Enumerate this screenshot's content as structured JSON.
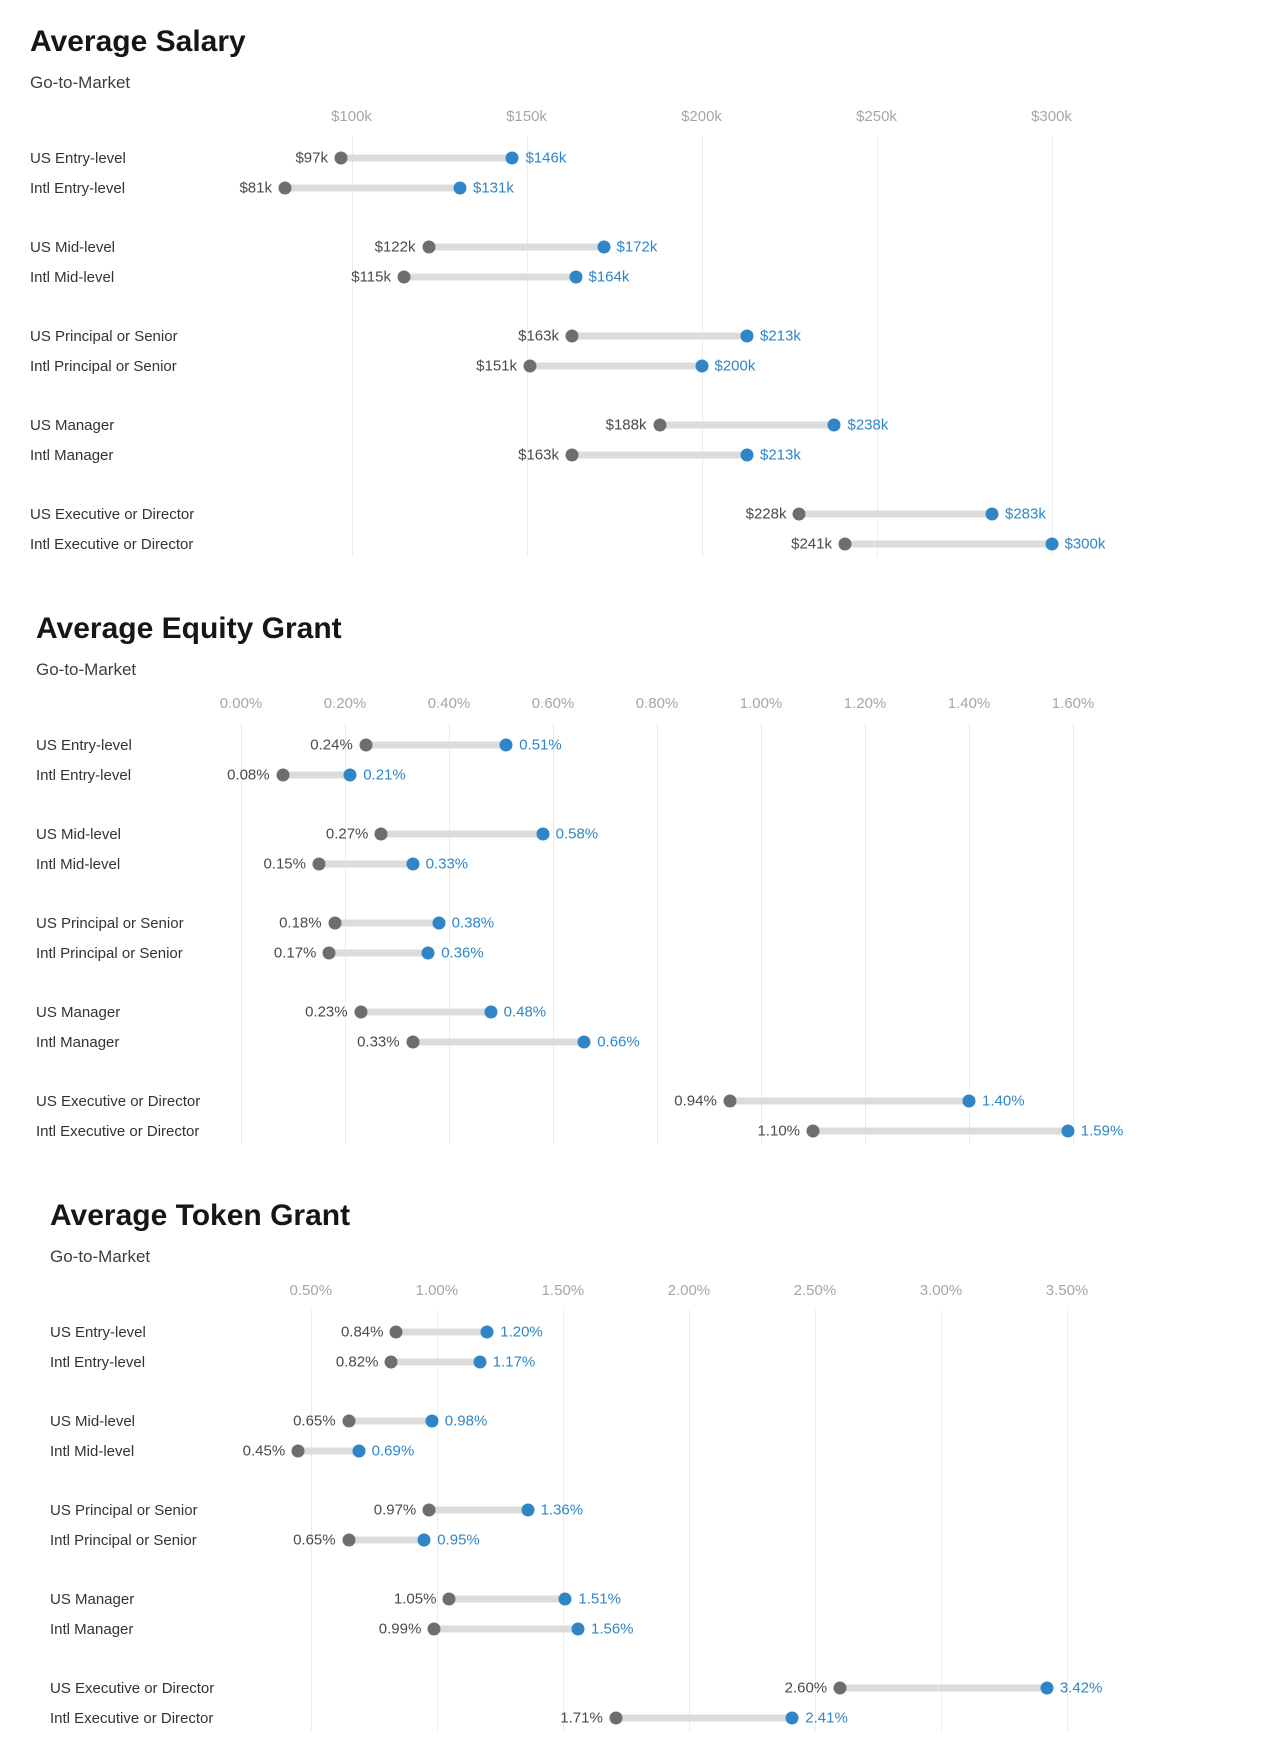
{
  "colors": {
    "background": "#ffffff",
    "accent_blue": "#2e86c6",
    "dot_gray": "#6e6e6e",
    "bar_gray": "#dcdcdc",
    "gridline": "#ececec",
    "axis_text": "#a6a6a6",
    "row_label_text": "#333333",
    "low_value_text": "#4a4a4a",
    "title_text": "#161616"
  },
  "chart_data": [
    {
      "type": "dumbbell",
      "title": "Average Salary",
      "subtitle": "Go-to-Market",
      "unit": "USD thousands per year",
      "low_series": "low average (gray dot)",
      "high_series": "high average (blue dot)",
      "axis": {
        "min": 61,
        "max": 321,
        "ticks": [
          {
            "value": 100,
            "label": "$100k"
          },
          {
            "value": 150,
            "label": "$150k"
          },
          {
            "value": 200,
            "label": "$200k"
          },
          {
            "value": 250,
            "label": "$250k"
          },
          {
            "value": 300,
            "label": "$300k"
          }
        ]
      },
      "groups": [
        {
          "rows": [
            {
              "label": "US Entry-level",
              "low": 97,
              "high": 146,
              "low_label": "$97k",
              "high_label": "$146k"
            },
            {
              "label": "Intl Entry-level",
              "low": 81,
              "high": 131,
              "low_label": "$81k",
              "high_label": "$131k"
            }
          ]
        },
        {
          "rows": [
            {
              "label": "US Mid-level",
              "low": 122,
              "high": 172,
              "low_label": "$122k",
              "high_label": "$172k"
            },
            {
              "label": "Intl Mid-level",
              "low": 115,
              "high": 164,
              "low_label": "$115k",
              "high_label": "$164k"
            }
          ]
        },
        {
          "rows": [
            {
              "label": "US Principal or Senior",
              "low": 163,
              "high": 213,
              "low_label": "$163k",
              "high_label": "$213k"
            },
            {
              "label": "Intl Principal or Senior",
              "low": 151,
              "high": 200,
              "low_label": "$151k",
              "high_label": "$200k"
            }
          ]
        },
        {
          "rows": [
            {
              "label": "US Manager",
              "low": 188,
              "high": 238,
              "low_label": "$188k",
              "high_label": "$238k"
            },
            {
              "label": "Intl Manager",
              "low": 163,
              "high": 213,
              "low_label": "$163k",
              "high_label": "$213k"
            }
          ]
        },
        {
          "rows": [
            {
              "label": "US Executive or Director",
              "low": 228,
              "high": 283,
              "low_label": "$228k",
              "high_label": "$283k"
            },
            {
              "label": "Intl Executive or Director",
              "low": 241,
              "high": 300,
              "low_label": "$241k",
              "high_label": "$300k"
            }
          ]
        }
      ]
    },
    {
      "type": "dumbbell",
      "title": "Average Equity Grant",
      "subtitle": "Go-to-Market",
      "unit": "percent",
      "low_series": "low average (gray dot)",
      "high_series": "high average (blue dot)",
      "axis": {
        "min": -0.05,
        "max": 1.7,
        "ticks": [
          {
            "value": 0.0,
            "label": "0.00%"
          },
          {
            "value": 0.2,
            "label": "0.20%"
          },
          {
            "value": 0.4,
            "label": "0.40%"
          },
          {
            "value": 0.6,
            "label": "0.60%"
          },
          {
            "value": 0.8,
            "label": "0.80%"
          },
          {
            "value": 1.0,
            "label": "1.00%"
          },
          {
            "value": 1.2,
            "label": "1.20%"
          },
          {
            "value": 1.4,
            "label": "1.40%"
          },
          {
            "value": 1.6,
            "label": "1.60%"
          }
        ]
      },
      "groups": [
        {
          "rows": [
            {
              "label": "US Entry-level",
              "low": 0.24,
              "high": 0.51,
              "low_label": "0.24%",
              "high_label": "0.51%"
            },
            {
              "label": "Intl Entry-level",
              "low": 0.08,
              "high": 0.21,
              "low_label": "0.08%",
              "high_label": "0.21%"
            }
          ]
        },
        {
          "rows": [
            {
              "label": "US Mid-level",
              "low": 0.27,
              "high": 0.58,
              "low_label": "0.27%",
              "high_label": "0.58%"
            },
            {
              "label": "Intl Mid-level",
              "low": 0.15,
              "high": 0.33,
              "low_label": "0.15%",
              "high_label": "0.33%"
            }
          ]
        },
        {
          "rows": [
            {
              "label": "US Principal or Senior",
              "low": 0.18,
              "high": 0.38,
              "low_label": "0.18%",
              "high_label": "0.38%"
            },
            {
              "label": "Intl Principal or Senior",
              "low": 0.17,
              "high": 0.36,
              "low_label": "0.17%",
              "high_label": "0.36%"
            }
          ]
        },
        {
          "rows": [
            {
              "label": "US Manager",
              "low": 0.23,
              "high": 0.48,
              "low_label": "0.23%",
              "high_label": "0.48%"
            },
            {
              "label": "Intl Manager",
              "low": 0.33,
              "high": 0.66,
              "low_label": "0.33%",
              "high_label": "0.66%"
            }
          ]
        },
        {
          "rows": [
            {
              "label": "US Executive or Director",
              "low": 0.94,
              "high": 1.4,
              "low_label": "0.94%",
              "high_label": "1.40%"
            },
            {
              "label": "Intl Executive or Director",
              "low": 1.1,
              "high": 1.59,
              "low_label": "1.10%",
              "high_label": "1.59%"
            }
          ]
        }
      ]
    },
    {
      "type": "dumbbell",
      "title": "Average Token Grant",
      "subtitle": "Go-to-Market",
      "unit": "percent",
      "low_series": "low average (gray dot)",
      "high_series": "high average (blue dot)",
      "axis": {
        "min": 0.12,
        "max": 3.73,
        "ticks": [
          {
            "value": 0.5,
            "label": "0.50%"
          },
          {
            "value": 1.0,
            "label": "1.00%"
          },
          {
            "value": 1.5,
            "label": "1.50%"
          },
          {
            "value": 2.0,
            "label": "2.00%"
          },
          {
            "value": 2.5,
            "label": "2.50%"
          },
          {
            "value": 3.0,
            "label": "3.00%"
          },
          {
            "value": 3.5,
            "label": "3.50%"
          }
        ]
      },
      "groups": [
        {
          "rows": [
            {
              "label": "US Entry-level",
              "low": 0.84,
              "high": 1.2,
              "low_label": "0.84%",
              "high_label": "1.20%"
            },
            {
              "label": "Intl Entry-level",
              "low": 0.82,
              "high": 1.17,
              "low_label": "0.82%",
              "high_label": "1.17%"
            }
          ]
        },
        {
          "rows": [
            {
              "label": "US Mid-level",
              "low": 0.65,
              "high": 0.98,
              "low_label": "0.65%",
              "high_label": "0.98%"
            },
            {
              "label": "Intl Mid-level",
              "low": 0.45,
              "high": 0.69,
              "low_label": "0.45%",
              "high_label": "0.69%"
            }
          ]
        },
        {
          "rows": [
            {
              "label": "US Principal or Senior",
              "low": 0.97,
              "high": 1.36,
              "low_label": "0.97%",
              "high_label": "1.36%"
            },
            {
              "label": "Intl Principal or Senior",
              "low": 0.65,
              "high": 0.95,
              "low_label": "0.65%",
              "high_label": "0.95%"
            }
          ]
        },
        {
          "rows": [
            {
              "label": "US Manager",
              "low": 1.05,
              "high": 1.51,
              "low_label": "1.05%",
              "high_label": "1.51%"
            },
            {
              "label": "Intl Manager",
              "low": 0.99,
              "high": 1.56,
              "low_label": "0.99%",
              "high_label": "1.56%"
            }
          ]
        },
        {
          "rows": [
            {
              "label": "US Executive or Director",
              "low": 2.6,
              "high": 3.42,
              "low_label": "2.60%",
              "high_label": "3.42%"
            },
            {
              "label": "Intl Executive or Director",
              "low": 1.71,
              "high": 2.41,
              "low_label": "1.71%",
              "high_label": "2.41%"
            }
          ]
        }
      ]
    }
  ]
}
